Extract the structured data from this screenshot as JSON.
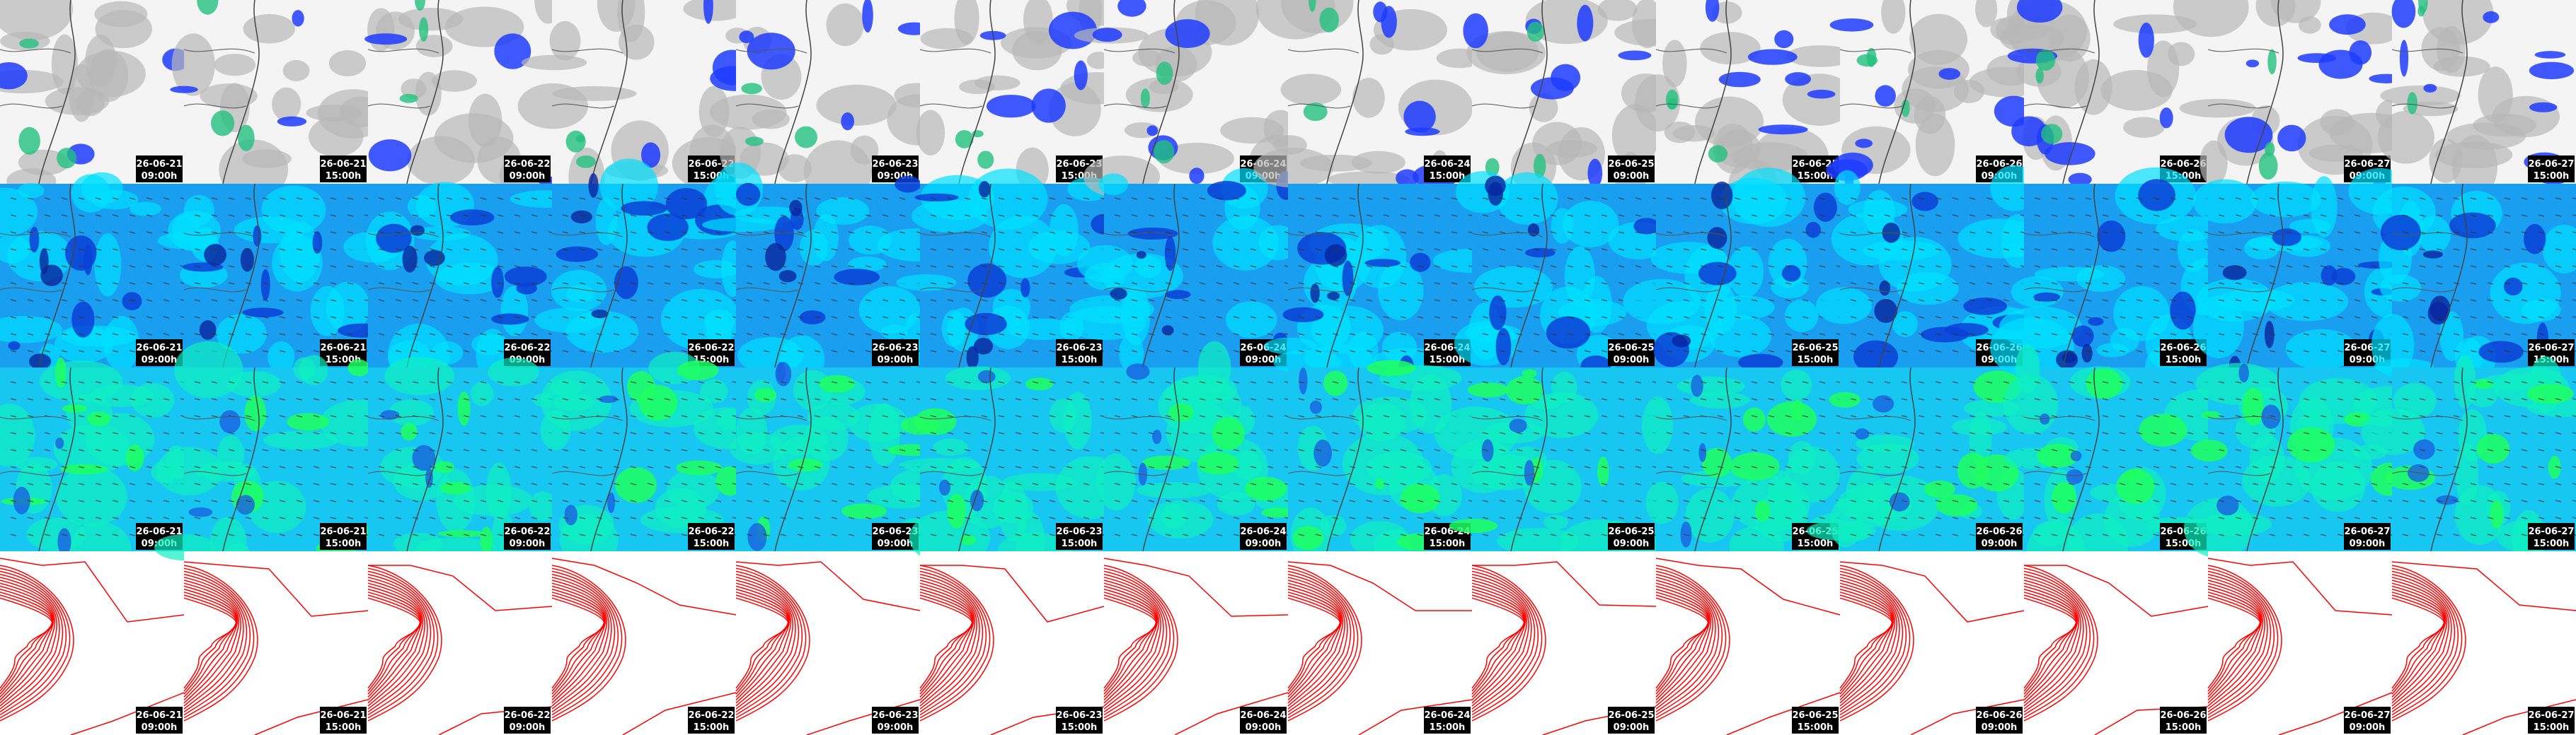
{
  "columns": [
    {
      "date": "26-06-21",
      "time": "09:00h"
    },
    {
      "date": "26-06-21",
      "time": "15:00h"
    },
    {
      "date": "26-06-22",
      "time": "09:00h"
    },
    {
      "date": "26-06-22",
      "time": "15:00h"
    },
    {
      "date": "26-06-23",
      "time": "09:00h"
    },
    {
      "date": "26-06-23",
      "time": "15:00h"
    },
    {
      "date": "26-06-24",
      "time": "09:00h"
    },
    {
      "date": "26-06-24",
      "time": "15:00h"
    },
    {
      "date": "26-06-25",
      "time": "09:00h"
    },
    {
      "date": "26-06-25",
      "time": "15:00h"
    },
    {
      "date": "26-06-26",
      "time": "09:00h"
    },
    {
      "date": "26-06-26",
      "time": "15:00h"
    },
    {
      "date": "26-06-27",
      "time": "09:00h"
    },
    {
      "date": "26-06-27",
      "time": "15:00h"
    }
  ]
}
